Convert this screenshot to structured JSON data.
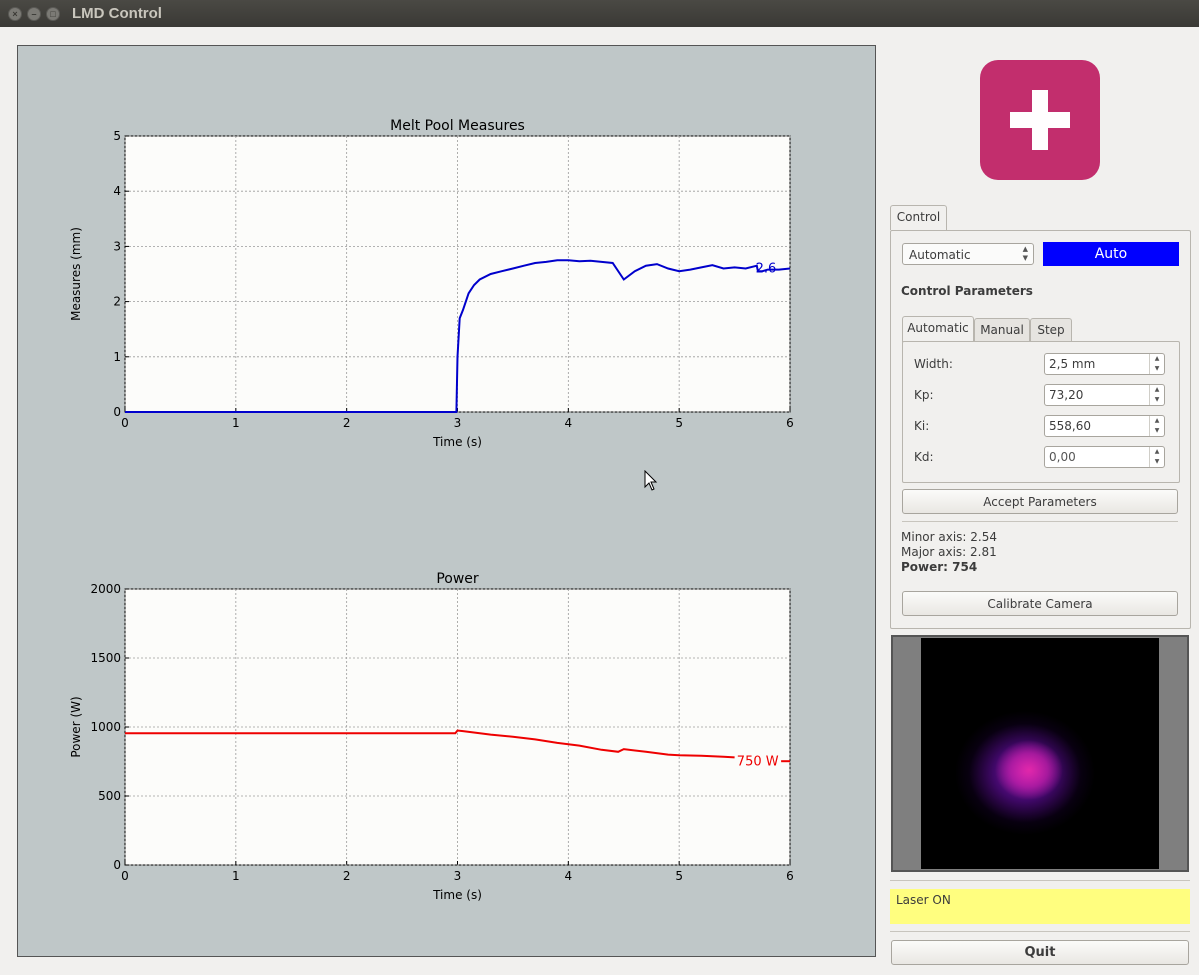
{
  "window": {
    "title": "LMD Control"
  },
  "colors": {
    "measure_line": "#0000cc",
    "power_line": "#ee0000",
    "mode_badge": "#0000ff",
    "logo": "#c22e6d",
    "status_bg": "#fffe7f"
  },
  "control": {
    "tab_label": "Control",
    "mode_select": {
      "value": "Automatic"
    },
    "mode_badge": "Auto",
    "params_title": "Control Parameters",
    "subtabs": [
      "Automatic",
      "Manual",
      "Step"
    ],
    "fields": [
      {
        "label": "Width:",
        "value": "2,5 mm"
      },
      {
        "label": "Kp:",
        "value": "73,20"
      },
      {
        "label": "Ki:",
        "value": "558,60"
      },
      {
        "label": "Kd:",
        "value": "0,00"
      }
    ],
    "accept_button": "Accept Parameters",
    "minor_axis": "Minor axis: 2.54",
    "major_axis": "Major axis: 2.81",
    "power": "Power: 754",
    "calibrate_button": "Calibrate Camera"
  },
  "status": "Laser ON",
  "quit_button": "Quit",
  "chart_data": [
    {
      "type": "line",
      "title": "Melt Pool Measures",
      "xlabel": "Time (s)",
      "ylabel": "Measures (mm)",
      "xlim": [
        0,
        6
      ],
      "ylim": [
        0,
        5
      ],
      "xticks": [
        0,
        1,
        2,
        3,
        4,
        5,
        6
      ],
      "yticks": [
        0,
        1,
        2,
        3,
        4,
        5
      ],
      "grid": true,
      "annotation": "2.6",
      "series": [
        {
          "color": "#0000cc",
          "x": [
            0,
            2.99,
            3.0,
            3.02,
            3.05,
            3.1,
            3.15,
            3.2,
            3.3,
            3.4,
            3.5,
            3.6,
            3.7,
            3.8,
            3.9,
            4.0,
            4.1,
            4.2,
            4.3,
            4.4,
            4.5,
            4.6,
            4.7,
            4.8,
            4.9,
            5.0,
            5.1,
            5.2,
            5.3,
            5.4,
            5.5,
            5.6,
            5.7,
            5.71,
            5.75,
            5.8,
            5.9,
            6.0
          ],
          "y": [
            0,
            0,
            1.0,
            1.7,
            1.85,
            2.15,
            2.3,
            2.4,
            2.5,
            2.55,
            2.6,
            2.65,
            2.7,
            2.72,
            2.75,
            2.75,
            2.73,
            2.74,
            2.72,
            2.7,
            2.4,
            2.55,
            2.65,
            2.68,
            2.6,
            2.55,
            2.58,
            2.62,
            2.66,
            2.6,
            2.62,
            2.6,
            2.65,
            2.55,
            2.55,
            2.58,
            2.58,
            2.6
          ]
        }
      ]
    },
    {
      "type": "line",
      "title": "Power",
      "xlabel": "Time (s)",
      "ylabel": "Power (W)",
      "xlim": [
        0,
        6
      ],
      "ylim": [
        0,
        2000
      ],
      "xticks": [
        0,
        1,
        2,
        3,
        4,
        5,
        6
      ],
      "yticks": [
        0,
        500,
        1000,
        1500,
        2000
      ],
      "grid": true,
      "annotation": "750 W",
      "series": [
        {
          "color": "#ee0000",
          "x": [
            0,
            2.98,
            3.0,
            3.05,
            3.3,
            3.5,
            3.7,
            3.9,
            4.1,
            4.3,
            4.45,
            4.5,
            4.7,
            4.9,
            5.0,
            5.2,
            5.4,
            5.5
          ],
          "y": [
            955,
            955,
            975,
            970,
            945,
            930,
            910,
            885,
            865,
            835,
            820,
            840,
            820,
            800,
            795,
            792,
            785,
            780
          ]
        },
        {
          "color": "#ee0000",
          "x": [
            5.92,
            6.0
          ],
          "y": [
            752,
            752
          ]
        }
      ]
    }
  ]
}
